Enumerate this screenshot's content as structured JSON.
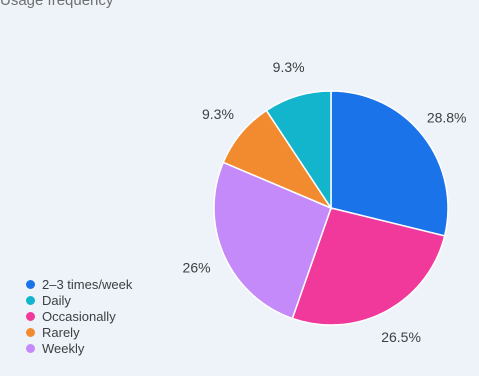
{
  "chart_data": {
    "type": "pie",
    "title": "Usage frequency",
    "categories": [
      "2–3 times/week",
      "Occasionally",
      "Weekly",
      "Rarely",
      "Daily"
    ],
    "values": [
      28.8,
      26.5,
      26,
      9.3,
      9.3
    ],
    "value_labels": [
      "28.8%",
      "26.5%",
      "26%",
      "9.3%",
      "9.3%"
    ],
    "colors": [
      "#1a73e8",
      "#f0399a",
      "#c58af9",
      "#f28b30",
      "#12b5cb"
    ],
    "start_angle_deg": 0,
    "direction": "clockwise",
    "legend_position": "bottom-left"
  },
  "legend": {
    "items": [
      {
        "label": "2–3 times/week",
        "color": "#1a73e8"
      },
      {
        "label": "Daily",
        "color": "#12b5cb"
      },
      {
        "label": "Occasionally",
        "color": "#f0399a"
      },
      {
        "label": "Rarely",
        "color": "#f28b30"
      },
      {
        "label": "Weekly",
        "color": "#c58af9"
      }
    ]
  }
}
